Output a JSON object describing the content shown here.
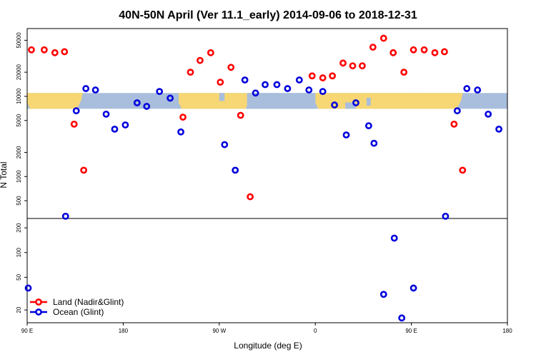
{
  "chart_data": {
    "type": "scatter",
    "title": "40N-50N April (Ver 11.1_early)   2014-09-06 to 2018-12-31",
    "xlabel": "Longitude (deg E)",
    "ylabel": "N Total",
    "x_ticks": [
      {
        "value": 90,
        "label": "90 E"
      },
      {
        "value": 180,
        "label": "180"
      },
      {
        "value": 270,
        "label": "90 W"
      },
      {
        "value": 360,
        "label": "0"
      },
      {
        "value": 450,
        "label": "90 E"
      },
      {
        "value": 540,
        "label": "180"
      }
    ],
    "xlim": [
      90,
      540
    ],
    "upper_panel": {
      "scale": "log",
      "ylim": [
        300,
        70000
      ],
      "y_ticks": [
        {
          "value": 500,
          "label": "500"
        },
        {
          "value": 1000,
          "label": "1000"
        },
        {
          "value": 2000,
          "label": "2000"
        },
        {
          "value": 5000,
          "label": "5000"
        },
        {
          "value": 10000,
          "label": "10000"
        },
        {
          "value": 20000,
          "label": "20000"
        },
        {
          "value": 50000,
          "label": "50000"
        }
      ],
      "map_band": {
        "lat_range": [
          40,
          50
        ],
        "y_range": [
          7000,
          11000
        ],
        "land_color": "#f7d774",
        "ocean_color": "#a8bedc"
      },
      "series": [
        {
          "name": "Land (Nadir&Glint)",
          "color": "#ff0000",
          "points": [
            [
              94,
              38000
            ],
            [
              106,
              38000
            ],
            [
              116,
              35000
            ],
            [
              125,
              36000
            ],
            [
              134,
              4500
            ],
            [
              143,
              1200
            ],
            [
              236,
              5500
            ],
            [
              243,
              20000
            ],
            [
              252,
              28000
            ],
            [
              262,
              35000
            ],
            [
              271,
              15000
            ],
            [
              281,
              23000
            ],
            [
              290,
              5800
            ],
            [
              299,
              560
            ],
            [
              357,
              18000
            ],
            [
              367,
              17000
            ],
            [
              376,
              18000
            ],
            [
              386,
              26000
            ],
            [
              395,
              24000
            ],
            [
              404,
              24000
            ],
            [
              414,
              41000
            ],
            [
              424,
              53000
            ],
            [
              433,
              35000
            ],
            [
              443,
              20000
            ],
            [
              452,
              38000
            ],
            [
              462,
              38000
            ],
            [
              472,
              35000
            ],
            [
              481,
              36000
            ],
            [
              490,
              4500
            ],
            [
              498,
              1200
            ]
          ]
        },
        {
          "name": "Ocean (Glint)",
          "color": "#0000dd",
          "points": [
            [
              126,
              320
            ],
            [
              136,
              6600
            ],
            [
              145,
              12500
            ],
            [
              154,
              12000
            ],
            [
              164,
              6000
            ],
            [
              172,
              3900
            ],
            [
              182,
              4400
            ],
            [
              193,
              8300
            ],
            [
              202,
              7500
            ],
            [
              214,
              11500
            ],
            [
              224,
              9500
            ],
            [
              234,
              3600
            ],
            [
              275,
              2500
            ],
            [
              285,
              1200
            ],
            [
              294,
              16000
            ],
            [
              304,
              11000
            ],
            [
              313,
              14000
            ],
            [
              324,
              14000
            ],
            [
              334,
              12500
            ],
            [
              345,
              16000
            ],
            [
              354,
              12000
            ],
            [
              367,
              11500
            ],
            [
              378,
              7800
            ],
            [
              389,
              3300
            ],
            [
              398,
              8300
            ],
            [
              410,
              4300
            ],
            [
              415,
              2600
            ],
            [
              482,
              320
            ],
            [
              493,
              6600
            ],
            [
              502,
              12500
            ],
            [
              512,
              12000
            ],
            [
              522,
              6000
            ],
            [
              532,
              3900
            ]
          ]
        }
      ]
    },
    "lower_panel": {
      "scale": "log",
      "ylim": [
        14,
        260
      ],
      "y_ticks": [
        {
          "value": 20,
          "label": "20"
        },
        {
          "value": 50,
          "label": "50"
        },
        {
          "value": 100,
          "label": "100"
        },
        {
          "value": 200,
          "label": "200"
        }
      ],
      "series": [
        {
          "name": "Ocean (Glint)",
          "color": "#0000dd",
          "points": [
            [
              91,
              37
            ],
            [
              424,
              31
            ],
            [
              434,
              150
            ],
            [
              441,
              16
            ],
            [
              452,
              37
            ]
          ]
        }
      ]
    },
    "legend": {
      "placement": "bottom-left",
      "entries": [
        {
          "label": "Land (Nadir&Glint)",
          "color": "#ff0000"
        },
        {
          "label": "Ocean (Glint)",
          "color": "#0000dd"
        }
      ]
    }
  }
}
